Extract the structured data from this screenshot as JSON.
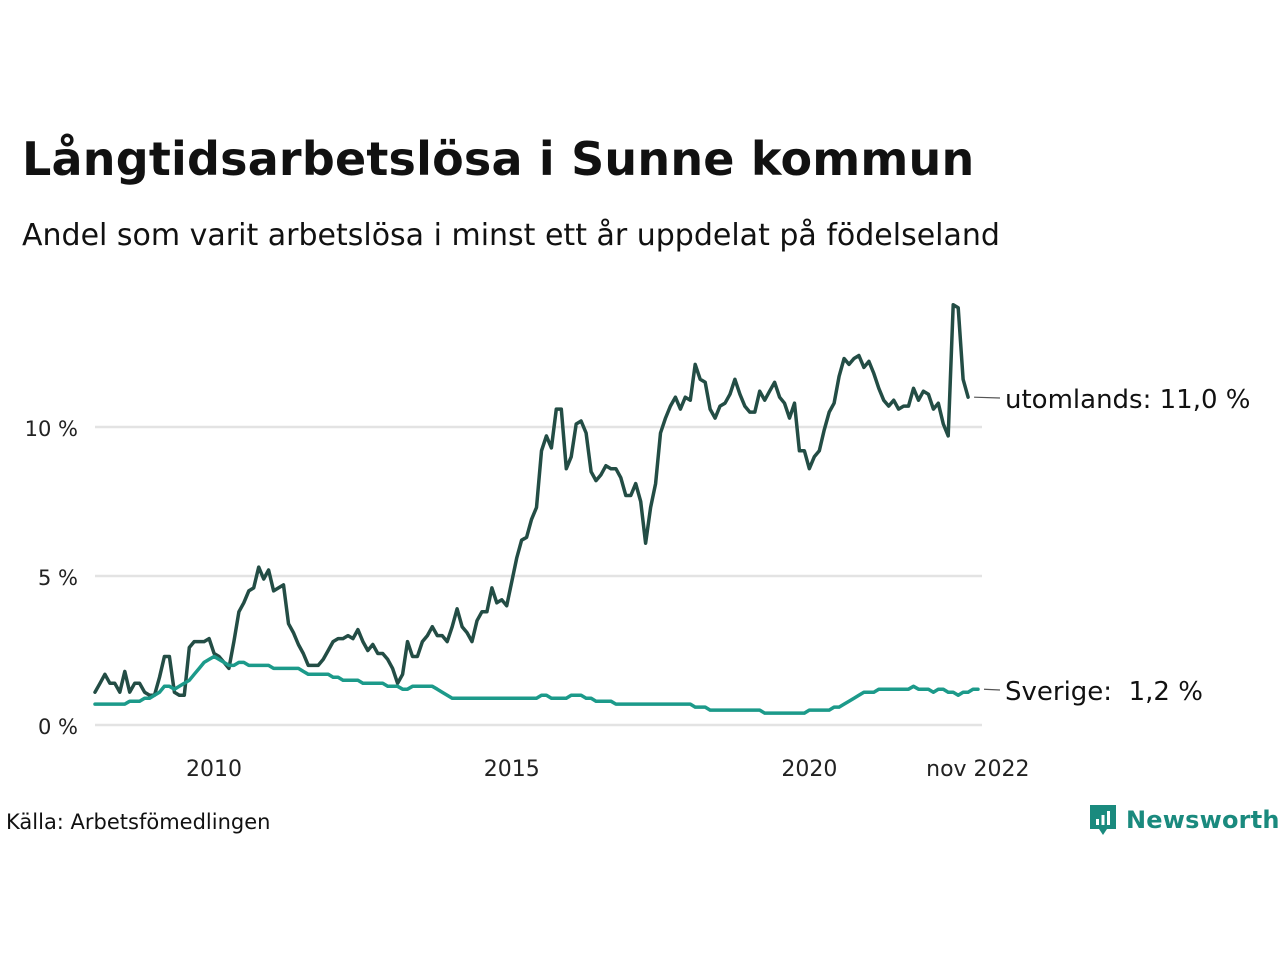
{
  "title": "Långtidsarbetslösa i Sunne kommun",
  "subtitle": "Andel som varit arbetslösa i minst ett år uppdelat på födelseland",
  "source": "Källa: Arbetsfömedlingen",
  "brand": "Newsworthy",
  "colors": {
    "utomlands": "#234d45",
    "sverige": "#1c9a8a",
    "grid": "#e3e3e3",
    "brand": "#1a8a7e"
  },
  "chart_data": {
    "type": "line",
    "x_start_year": 2008.0,
    "x_step_years": 0.08333,
    "xlim": [
      2008.0,
      2022.9
    ],
    "ylim": [
      0,
      14.5
    ],
    "y_ticks": [
      0,
      5,
      10
    ],
    "y_tick_labels": [
      "0 %",
      "5 %",
      "10 %"
    ],
    "x_ticks": [
      2010,
      2015,
      2020,
      2022.83
    ],
    "x_tick_labels": [
      "2010",
      "2015",
      "2020",
      "nov 2022"
    ],
    "grid": true,
    "series": [
      {
        "name": "utomlands",
        "end_label": "utomlands: 11,0 %",
        "values": [
          1.1,
          1.4,
          1.7,
          1.4,
          1.4,
          1.1,
          1.8,
          1.1,
          1.4,
          1.4,
          1.1,
          1.0,
          1.0,
          1.6,
          2.3,
          2.3,
          1.1,
          1.0,
          1.0,
          2.6,
          2.8,
          2.8,
          2.8,
          2.9,
          2.4,
          2.3,
          2.1,
          1.9,
          2.8,
          3.8,
          4.1,
          4.5,
          4.6,
          5.3,
          4.9,
          5.2,
          4.5,
          4.6,
          4.7,
          3.4,
          3.1,
          2.7,
          2.4,
          2.0,
          2.0,
          2.0,
          2.2,
          2.5,
          2.8,
          2.9,
          2.9,
          3.0,
          2.9,
          3.2,
          2.8,
          2.5,
          2.7,
          2.4,
          2.4,
          2.2,
          1.9,
          1.4,
          1.7,
          2.8,
          2.3,
          2.3,
          2.8,
          3.0,
          3.3,
          3.0,
          3.0,
          2.8,
          3.3,
          3.9,
          3.3,
          3.1,
          2.8,
          3.5,
          3.8,
          3.8,
          4.6,
          4.1,
          4.2,
          4.0,
          4.8,
          5.6,
          6.2,
          6.3,
          6.9,
          7.3,
          9.2,
          9.7,
          9.3,
          10.6,
          10.6,
          8.6,
          9.0,
          10.1,
          10.2,
          9.8,
          8.5,
          8.2,
          8.4,
          8.7,
          8.6,
          8.6,
          8.3,
          7.7,
          7.7,
          8.1,
          7.5,
          6.1,
          7.3,
          8.1,
          9.8,
          10.3,
          10.7,
          11.0,
          10.6,
          11.0,
          10.9,
          12.1,
          11.6,
          11.5,
          10.6,
          10.3,
          10.7,
          10.8,
          11.1,
          11.6,
          11.1,
          10.7,
          10.5,
          10.5,
          11.2,
          10.9,
          11.2,
          11.5,
          11.0,
          10.8,
          10.3,
          10.8,
          9.2,
          9.2,
          8.6,
          9.0,
          9.2,
          9.9,
          10.5,
          10.8,
          11.7,
          12.3,
          12.1,
          12.3,
          12.4,
          12.0,
          12.2,
          11.8,
          11.3,
          10.9,
          10.7,
          10.9,
          10.6,
          10.7,
          10.7,
          11.3,
          10.9,
          11.2,
          11.1,
          10.6,
          10.8,
          10.1,
          9.7,
          14.1,
          14.0,
          11.6,
          11.0
        ]
      },
      {
        "name": "Sverige",
        "end_label": "Sverige:  1,2 %",
        "values": [
          0.7,
          0.7,
          0.7,
          0.7,
          0.7,
          0.7,
          0.7,
          0.8,
          0.8,
          0.8,
          0.9,
          0.9,
          1.0,
          1.1,
          1.3,
          1.3,
          1.2,
          1.3,
          1.4,
          1.5,
          1.7,
          1.9,
          2.1,
          2.2,
          2.3,
          2.2,
          2.1,
          2.0,
          2.0,
          2.1,
          2.1,
          2.0,
          2.0,
          2.0,
          2.0,
          2.0,
          1.9,
          1.9,
          1.9,
          1.9,
          1.9,
          1.9,
          1.8,
          1.7,
          1.7,
          1.7,
          1.7,
          1.7,
          1.6,
          1.6,
          1.5,
          1.5,
          1.5,
          1.5,
          1.4,
          1.4,
          1.4,
          1.4,
          1.4,
          1.3,
          1.3,
          1.3,
          1.2,
          1.2,
          1.3,
          1.3,
          1.3,
          1.3,
          1.3,
          1.2,
          1.1,
          1.0,
          0.9,
          0.9,
          0.9,
          0.9,
          0.9,
          0.9,
          0.9,
          0.9,
          0.9,
          0.9,
          0.9,
          0.9,
          0.9,
          0.9,
          0.9,
          0.9,
          0.9,
          0.9,
          1.0,
          1.0,
          0.9,
          0.9,
          0.9,
          0.9,
          1.0,
          1.0,
          1.0,
          0.9,
          0.9,
          0.8,
          0.8,
          0.8,
          0.8,
          0.7,
          0.7,
          0.7,
          0.7,
          0.7,
          0.7,
          0.7,
          0.7,
          0.7,
          0.7,
          0.7,
          0.7,
          0.7,
          0.7,
          0.7,
          0.7,
          0.6,
          0.6,
          0.6,
          0.5,
          0.5,
          0.5,
          0.5,
          0.5,
          0.5,
          0.5,
          0.5,
          0.5,
          0.5,
          0.5,
          0.4,
          0.4,
          0.4,
          0.4,
          0.4,
          0.4,
          0.4,
          0.4,
          0.4,
          0.5,
          0.5,
          0.5,
          0.5,
          0.5,
          0.6,
          0.6,
          0.7,
          0.8,
          0.9,
          1.0,
          1.1,
          1.1,
          1.1,
          1.2,
          1.2,
          1.2,
          1.2,
          1.2,
          1.2,
          1.2,
          1.3,
          1.2,
          1.2,
          1.2,
          1.1,
          1.2,
          1.2,
          1.1,
          1.1,
          1.0,
          1.1,
          1.1,
          1.2,
          1.2
        ]
      }
    ]
  }
}
